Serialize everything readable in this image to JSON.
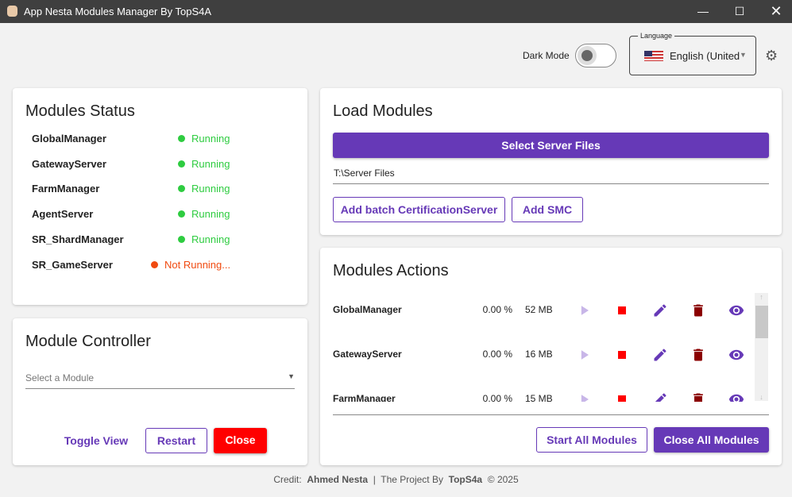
{
  "window": {
    "title": "App Nesta Modules Manager By TopS4A"
  },
  "header": {
    "dark_mode_label": "Dark Mode",
    "dark_mode_on": false,
    "language_label": "Language",
    "language_value": "English (United"
  },
  "status": {
    "title": "Modules Status",
    "modules": [
      {
        "name": "GlobalManager",
        "status": "Running",
        "color": "#2ecc40"
      },
      {
        "name": "GatewayServer",
        "status": "Running",
        "color": "#2ecc40"
      },
      {
        "name": "FarmManager",
        "status": "Running",
        "color": "#2ecc40"
      },
      {
        "name": "AgentServer",
        "status": "Running",
        "color": "#2ecc40"
      },
      {
        "name": "SR_ShardManager",
        "status": "Running",
        "color": "#2ecc40"
      },
      {
        "name": "SR_GameServer",
        "status": "Not Running...",
        "color": "#f04a10"
      }
    ]
  },
  "controller": {
    "title": "Module Controller",
    "select_placeholder": "Select a Module",
    "toggle_label": "Toggle View",
    "restart_label": "Restart",
    "close_label": "Close"
  },
  "load": {
    "title": "Load Modules",
    "select_label": "Select Server Files",
    "path": "T:\\Server Files",
    "batch_label": "Add batch CertificationServer",
    "smc_label": "Add SMC"
  },
  "actions": {
    "title": "Modules Actions",
    "rows": [
      {
        "name": "GlobalManager",
        "cpu": "0.00 %",
        "mem": "52 MB"
      },
      {
        "name": "GatewayServer",
        "cpu": "0.00 %",
        "mem": "16 MB"
      },
      {
        "name": "FarmManager",
        "cpu": "0.00 %",
        "mem": "15 MB"
      }
    ],
    "start_all_label": "Start All Modules",
    "close_all_label": "Close All Modules"
  },
  "footer": {
    "credit_label": "Credit:",
    "author": "Ahmed Nesta",
    "sep": "|",
    "project_label": "The Project By",
    "project": "TopS4a",
    "copyright": "© 2025"
  }
}
